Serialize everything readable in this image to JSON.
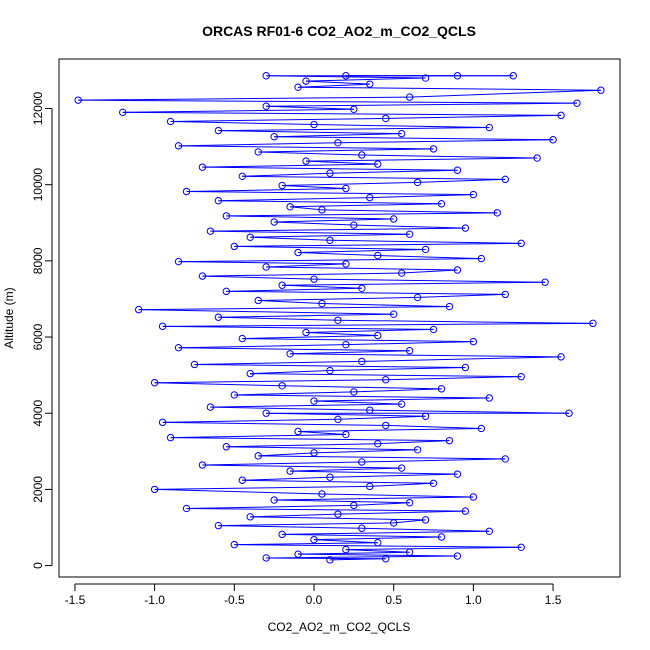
{
  "chart_data": {
    "type": "line",
    "title": "ORCAS RF01-6 CO2_AO2_m_CO2_QCLS",
    "xlabel": "CO2_AO2_m_CO2_QCLS",
    "ylabel": "Altitude (m)",
    "xlim": [
      -1.6,
      1.92
    ],
    "ylim": [
      -300,
      13300
    ],
    "x_ticks": [
      "-1.5",
      "-1.0",
      "-0.5",
      "0.0",
      "0.5",
      "1.0",
      "1.5"
    ],
    "y_ticks": [
      "0",
      "2000",
      "4000",
      "6000",
      "8000",
      "10000",
      "12000"
    ],
    "grid": false,
    "marker": "open-circle",
    "series_color": "#0000ff",
    "series": [
      {
        "points": [
          [
            0.1,
            150
          ],
          [
            0.45,
            180
          ],
          [
            -0.3,
            200
          ],
          [
            0.9,
            250
          ],
          [
            -0.1,
            300
          ],
          [
            0.6,
            350
          ],
          [
            0.2,
            420
          ],
          [
            1.3,
            480
          ],
          [
            -0.5,
            550
          ],
          [
            0.4,
            600
          ],
          [
            0.0,
            680
          ],
          [
            0.8,
            750
          ],
          [
            -0.2,
            820
          ],
          [
            1.1,
            900
          ],
          [
            0.3,
            980
          ],
          [
            -0.6,
            1050
          ],
          [
            0.5,
            1120
          ],
          [
            0.7,
            1200
          ],
          [
            -0.4,
            1280
          ],
          [
            0.15,
            1350
          ],
          [
            0.95,
            1430
          ],
          [
            -0.8,
            1500
          ],
          [
            0.25,
            1580
          ],
          [
            0.6,
            1650
          ],
          [
            -0.25,
            1720
          ],
          [
            1.0,
            1800
          ],
          [
            0.05,
            1880
          ],
          [
            -1.0,
            2000
          ],
          [
            0.35,
            2080
          ],
          [
            0.75,
            2160
          ],
          [
            -0.45,
            2240
          ],
          [
            0.1,
            2320
          ],
          [
            0.9,
            2400
          ],
          [
            -0.15,
            2480
          ],
          [
            0.55,
            2560
          ],
          [
            -0.7,
            2640
          ],
          [
            0.3,
            2720
          ],
          [
            1.2,
            2800
          ],
          [
            -0.35,
            2880
          ],
          [
            0.0,
            2960
          ],
          [
            0.65,
            3040
          ],
          [
            -0.55,
            3120
          ],
          [
            0.4,
            3200
          ],
          [
            0.85,
            3280
          ],
          [
            -0.9,
            3360
          ],
          [
            0.2,
            3440
          ],
          [
            -0.1,
            3520
          ],
          [
            1.05,
            3600
          ],
          [
            0.45,
            3680
          ],
          [
            -0.95,
            3760
          ],
          [
            0.15,
            3840
          ],
          [
            0.7,
            3920
          ],
          [
            -0.3,
            4000
          ],
          [
            1.6,
            4000
          ],
          [
            0.35,
            4080
          ],
          [
            -0.65,
            4160
          ],
          [
            0.55,
            4240
          ],
          [
            0.0,
            4320
          ],
          [
            1.1,
            4400
          ],
          [
            -0.5,
            4480
          ],
          [
            0.25,
            4560
          ],
          [
            0.8,
            4640
          ],
          [
            -0.2,
            4720
          ],
          [
            -1.0,
            4800
          ],
          [
            0.45,
            4880
          ],
          [
            1.3,
            4960
          ],
          [
            -0.4,
            5040
          ],
          [
            0.1,
            5120
          ],
          [
            0.95,
            5200
          ],
          [
            -0.75,
            5280
          ],
          [
            0.3,
            5360
          ],
          [
            1.55,
            5480
          ],
          [
            -0.15,
            5560
          ],
          [
            0.6,
            5640
          ],
          [
            -0.85,
            5720
          ],
          [
            0.2,
            5800
          ],
          [
            1.0,
            5880
          ],
          [
            -0.45,
            5960
          ],
          [
            0.4,
            6040
          ],
          [
            -0.05,
            6120
          ],
          [
            0.75,
            6200
          ],
          [
            -0.95,
            6280
          ],
          [
            1.75,
            6360
          ],
          [
            0.15,
            6440
          ],
          [
            -0.6,
            6520
          ],
          [
            0.5,
            6600
          ],
          [
            -1.1,
            6720
          ],
          [
            0.85,
            6800
          ],
          [
            0.05,
            6880
          ],
          [
            -0.35,
            6960
          ],
          [
            0.65,
            7040
          ],
          [
            1.2,
            7120
          ],
          [
            -0.55,
            7200
          ],
          [
            0.3,
            7280
          ],
          [
            -0.2,
            7360
          ],
          [
            1.45,
            7440
          ],
          [
            0.0,
            7520
          ],
          [
            -0.7,
            7600
          ],
          [
            0.55,
            7680
          ],
          [
            0.9,
            7760
          ],
          [
            -0.3,
            7840
          ],
          [
            0.2,
            7920
          ],
          [
            -0.85,
            7980
          ],
          [
            1.05,
            8060
          ],
          [
            0.4,
            8140
          ],
          [
            -0.1,
            8220
          ],
          [
            0.7,
            8300
          ],
          [
            -0.5,
            8380
          ],
          [
            1.3,
            8460
          ],
          [
            0.1,
            8540
          ],
          [
            -0.4,
            8620
          ],
          [
            0.6,
            8700
          ],
          [
            -0.65,
            8780
          ],
          [
            0.95,
            8860
          ],
          [
            0.25,
            8940
          ],
          [
            -0.25,
            9020
          ],
          [
            0.5,
            9100
          ],
          [
            -0.55,
            9180
          ],
          [
            1.15,
            9260
          ],
          [
            0.05,
            9340
          ],
          [
            -0.15,
            9420
          ],
          [
            0.8,
            9500
          ],
          [
            -0.6,
            9580
          ],
          [
            0.35,
            9660
          ],
          [
            1.0,
            9740
          ],
          [
            -0.8,
            9820
          ],
          [
            0.2,
            9900
          ],
          [
            -0.2,
            9980
          ],
          [
            0.65,
            10060
          ],
          [
            1.2,
            10140
          ],
          [
            -0.45,
            10220
          ],
          [
            0.1,
            10300
          ],
          [
            0.9,
            10380
          ],
          [
            -0.7,
            10460
          ],
          [
            0.4,
            10540
          ],
          [
            -0.05,
            10620
          ],
          [
            1.4,
            10700
          ],
          [
            0.3,
            10780
          ],
          [
            -0.35,
            10860
          ],
          [
            0.75,
            10940
          ],
          [
            -0.85,
            11020
          ],
          [
            0.15,
            11100
          ],
          [
            1.5,
            11180
          ],
          [
            -0.25,
            11260
          ],
          [
            0.55,
            11340
          ],
          [
            -0.6,
            11420
          ],
          [
            1.1,
            11500
          ],
          [
            0.0,
            11580
          ],
          [
            -0.9,
            11660
          ],
          [
            0.45,
            11740
          ],
          [
            1.55,
            11820
          ],
          [
            -1.2,
            11900
          ],
          [
            0.25,
            11980
          ],
          [
            -0.3,
            12060
          ],
          [
            1.65,
            12140
          ],
          [
            -1.48,
            12220
          ],
          [
            0.6,
            12300
          ],
          [
            1.8,
            12480
          ],
          [
            -0.1,
            12560
          ],
          [
            0.35,
            12640
          ],
          [
            -0.05,
            12720
          ],
          [
            0.7,
            12800
          ],
          [
            -0.3,
            12860
          ],
          [
            1.25,
            12860
          ],
          [
            0.2,
            12860
          ],
          [
            0.9,
            12860
          ]
        ]
      }
    ]
  }
}
